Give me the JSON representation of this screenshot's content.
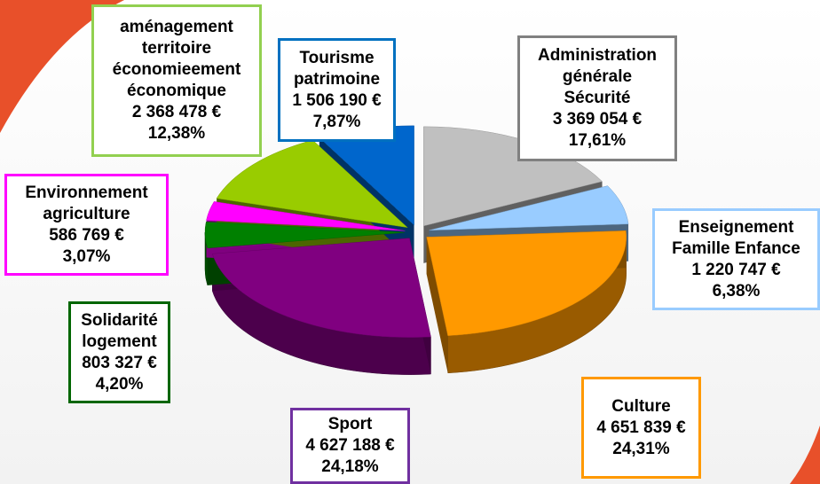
{
  "chart_data": {
    "type": "pie",
    "categories": [
      "Administration\ngénérale\nSécurité",
      "Enseignement\nFamille Enfance",
      "Culture",
      "Sport",
      "Solidarité\nlogement",
      "Environnement\nagriculture",
      "aménagement\nterritoire\néconomieement\néconomique",
      "Tourisme\npatrimoine"
    ],
    "values": [
      3369054,
      1220747,
      4651839,
      4627188,
      803327,
      586769,
      2368478,
      1506190
    ],
    "value_labels": [
      "3 369 054 €",
      "1 220 747 €",
      "4 651 839 €",
      "4 627 188 €",
      "803 327 €",
      "586 769 €",
      "2 368 478 €",
      "1 506 190 €"
    ],
    "percentages": [
      17.61,
      6.38,
      24.31,
      24.18,
      4.2,
      3.07,
      12.38,
      7.87
    ],
    "percentage_labels": [
      "17,61%",
      "6,38%",
      "24,31%",
      "24,18%",
      "4,20%",
      "3,07%",
      "12,38%",
      "7,87%"
    ],
    "colors": [
      "#c0c0c0",
      "#99ccff",
      "#ff9900",
      "#800080",
      "#008000",
      "#ff00ff",
      "#99cc00",
      "#0066cc"
    ],
    "label_colors": [
      "#808080",
      "#99ccff",
      "#ff9900",
      "#7030a0",
      "#006600",
      "#ff00ff",
      "#92d050",
      "#0070c0"
    ]
  }
}
